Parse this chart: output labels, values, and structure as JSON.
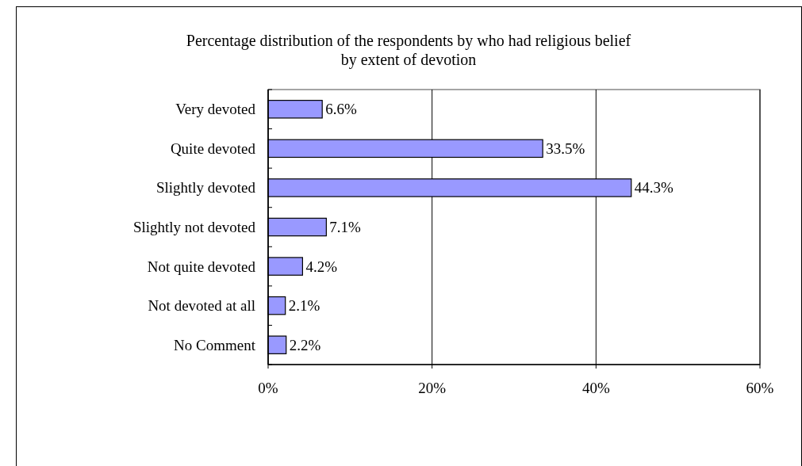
{
  "chart_data": {
    "type": "bar",
    "orientation": "horizontal",
    "title": "Percentage distribution of the respondents by who had religious belief\nby extent of devotion",
    "categories": [
      "Very devoted",
      "Quite devoted",
      "Slightly devoted",
      "Slightly not devoted",
      "Not quite devoted",
      "Not devoted at all",
      "No Comment"
    ],
    "values": [
      6.6,
      33.5,
      44.3,
      7.1,
      4.2,
      2.1,
      2.2
    ],
    "value_labels": [
      "6.6%",
      "33.5%",
      "44.3%",
      "7.1%",
      "4.2%",
      "2.1%",
      "2.2%"
    ],
    "color": "#9999ff",
    "xlim": [
      0,
      60
    ],
    "xticks": [
      {
        "value": 0,
        "label": "0%"
      },
      {
        "value": 20,
        "label": "20%"
      },
      {
        "value": 40,
        "label": "40%"
      },
      {
        "value": 60,
        "label": "60%"
      }
    ],
    "grid": "x"
  }
}
